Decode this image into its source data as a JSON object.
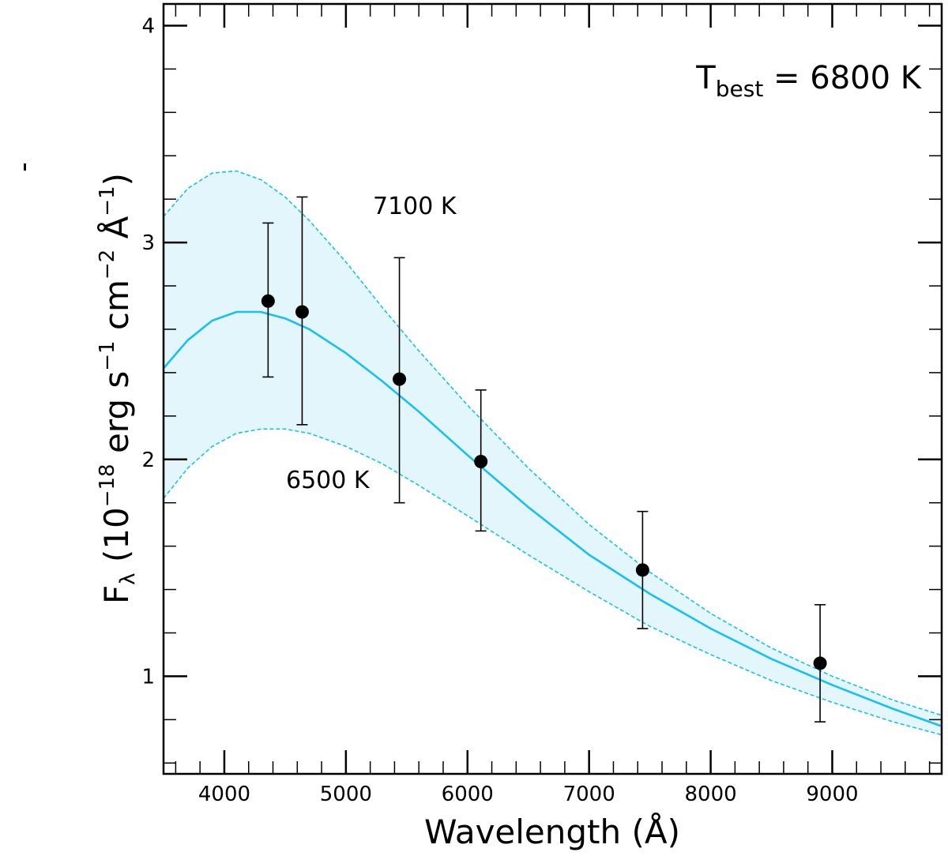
{
  "chart_data": {
    "type": "line",
    "title": "",
    "xlabel": "Wavelength (Å)",
    "ylabel": {
      "base": "F",
      "base_sub": "λ",
      "paren_open": " (10",
      "exp1": "−18",
      "unit1": " erg s",
      "exp2": "−1",
      "unit2": " cm",
      "exp3": "−2",
      "unit3": "  Å",
      "exp4": "−1",
      "paren_close": ")"
    },
    "xlim": [
      3500,
      9900
    ],
    "ylim": [
      0.55,
      4.1
    ],
    "x_ticks": [
      4000,
      5000,
      6000,
      7000,
      8000,
      9000
    ],
    "x_minor_step": 200,
    "y_ticks": [
      1,
      2,
      3,
      4
    ],
    "y_minor_step": 0.2,
    "tick_labels_x": [
      "4000",
      "5000",
      "6000",
      "7000",
      "8000",
      "9000"
    ],
    "tick_labels_y": [
      "1",
      "2",
      "3",
      "4"
    ],
    "best_fit_label": {
      "prefix": "T",
      "sub": "best",
      "suffix": " = 6800 K"
    },
    "series": [
      {
        "name": "T = 7100 K",
        "style": "dashed",
        "label": "7100 K",
        "x": [
          3500,
          3700,
          3900,
          4100,
          4300,
          4500,
          4700,
          5000,
          5300,
          5600,
          6000,
          6500,
          7000,
          7500,
          8000,
          8500,
          9000,
          9500,
          9900
        ],
        "y": [
          3.12,
          3.25,
          3.32,
          3.33,
          3.29,
          3.21,
          3.1,
          2.91,
          2.7,
          2.5,
          2.25,
          1.96,
          1.7,
          1.48,
          1.29,
          1.13,
          1.0,
          0.89,
          0.82
        ]
      },
      {
        "name": "T = 6800 K (best fit)",
        "style": "solid",
        "label": "",
        "x": [
          3500,
          3700,
          3900,
          4100,
          4300,
          4500,
          4700,
          5000,
          5300,
          5600,
          6000,
          6500,
          7000,
          7500,
          8000,
          8500,
          9000,
          9500,
          9900
        ],
        "y": [
          2.42,
          2.55,
          2.64,
          2.68,
          2.68,
          2.65,
          2.6,
          2.49,
          2.36,
          2.22,
          2.02,
          1.78,
          1.56,
          1.38,
          1.22,
          1.08,
          0.96,
          0.85,
          0.77
        ]
      },
      {
        "name": "T = 6500 K",
        "style": "dashed",
        "label": "6500 K",
        "x": [
          3500,
          3700,
          3900,
          4100,
          4300,
          4500,
          4700,
          5000,
          5300,
          5600,
          6000,
          6500,
          7000,
          7500,
          8000,
          8500,
          9000,
          9500,
          9900
        ],
        "y": [
          1.82,
          1.96,
          2.06,
          2.12,
          2.14,
          2.14,
          2.12,
          2.06,
          1.98,
          1.88,
          1.74,
          1.56,
          1.39,
          1.23,
          1.1,
          0.98,
          0.88,
          0.79,
          0.73
        ]
      }
    ],
    "observations": {
      "x": [
        4360,
        4640,
        5440,
        6110,
        7440,
        8900
      ],
      "y": [
        2.73,
        2.68,
        2.37,
        1.99,
        1.49,
        1.06
      ],
      "yerr_low": [
        0.35,
        0.52,
        0.57,
        0.32,
        0.27,
        0.27
      ],
      "yerr_high": [
        0.36,
        0.53,
        0.56,
        0.33,
        0.27,
        0.27
      ]
    },
    "colors": {
      "curve": "#17c0ef",
      "band_fill": "#e3f6fb",
      "points": "#000000"
    }
  }
}
